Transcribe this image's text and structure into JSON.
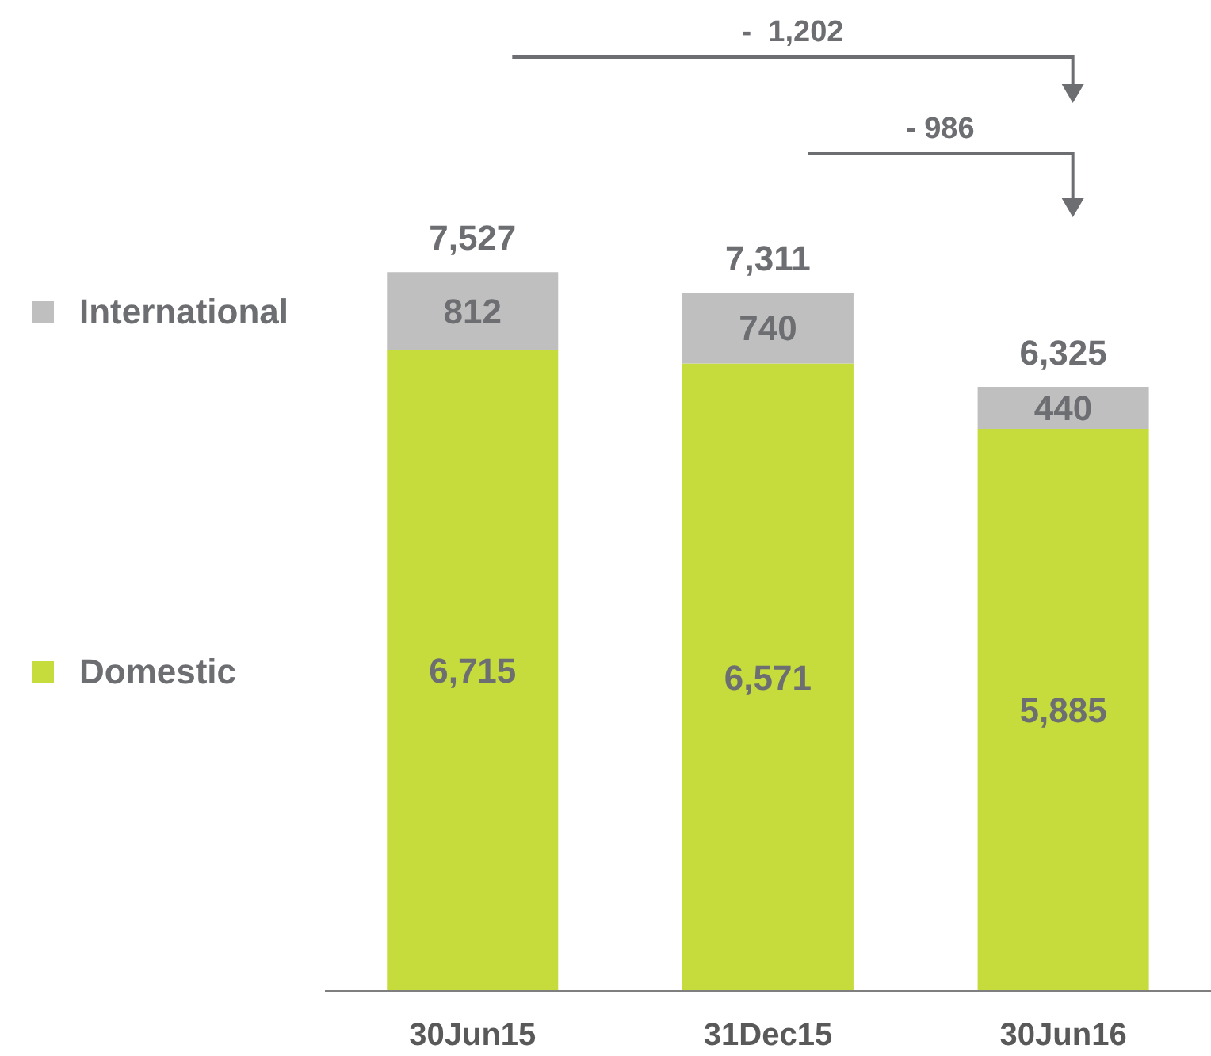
{
  "chart_data": {
    "type": "bar",
    "stacked": true,
    "categories": [
      "30Jun15",
      "31Dec15",
      "30Jun16"
    ],
    "series": [
      {
        "name": "Domestic",
        "color": "#c5dc3c",
        "values": [
          6715,
          6571,
          5885
        ],
        "value_labels": [
          "6,715",
          "6,571",
          "5,885"
        ]
      },
      {
        "name": "International",
        "color": "#bfbfbf",
        "values": [
          812,
          740,
          440
        ],
        "value_labels": [
          "812",
          "740",
          "440"
        ]
      }
    ],
    "totals": [
      "7,527",
      "7,311",
      "6,325"
    ],
    "legend": "left",
    "annotations": [
      "-  1,202",
      "- 986"
    ]
  }
}
